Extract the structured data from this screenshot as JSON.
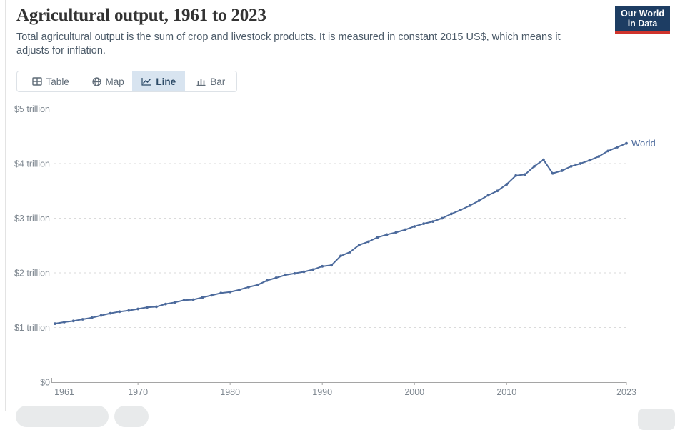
{
  "header": {
    "title": "Agricultural output, 1961 to 2023",
    "subtitle": "Total agricultural output is the sum of crop and livestock products. It is measured in constant 2015 US$, which means it\nadjusts for inflation.",
    "logo": {
      "line1": "Our World",
      "line2": "in Data"
    }
  },
  "tabs": [
    {
      "label": "Table",
      "icon": "table-icon",
      "active": false
    },
    {
      "label": "Map",
      "icon": "globe-icon",
      "active": false
    },
    {
      "label": "Line",
      "icon": "line-chart-icon",
      "active": true
    },
    {
      "label": "Bar",
      "icon": "bar-chart-icon",
      "active": false
    }
  ],
  "colors": {
    "series_blue": "#4C6A9C",
    "gridline": "#dadada",
    "axis": "#a5a5a5",
    "axis_label": "#7e8790",
    "logo_bg": "#1d3d63",
    "logo_red": "#d0342c",
    "active_tab_bg": "#d8e4f0"
  },
  "chart_data": {
    "type": "line",
    "title": "Agricultural output, 1961 to 2023",
    "xlabel": "",
    "ylabel": "",
    "ylim": [
      0,
      5
    ],
    "grid": "dashed-horizontal",
    "legend_position": "end-of-line-label",
    "years": [
      1961,
      1962,
      1963,
      1964,
      1965,
      1966,
      1967,
      1968,
      1969,
      1970,
      1971,
      1972,
      1973,
      1974,
      1975,
      1976,
      1977,
      1978,
      1979,
      1980,
      1981,
      1982,
      1983,
      1984,
      1985,
      1986,
      1987,
      1988,
      1989,
      1990,
      1991,
      1992,
      1993,
      1994,
      1995,
      1996,
      1997,
      1998,
      1999,
      2000,
      2001,
      2002,
      2003,
      2004,
      2005,
      2006,
      2007,
      2008,
      2009,
      2010,
      2011,
      2012,
      2013,
      2014,
      2015,
      2016,
      2017,
      2018,
      2019,
      2020,
      2021,
      2022,
      2023
    ],
    "series": [
      {
        "name": "World",
        "unit": "trillion US$ (constant 2015)",
        "values": [
          1.07,
          1.1,
          1.12,
          1.15,
          1.18,
          1.22,
          1.26,
          1.29,
          1.31,
          1.34,
          1.37,
          1.38,
          1.43,
          1.46,
          1.5,
          1.51,
          1.55,
          1.59,
          1.63,
          1.65,
          1.69,
          1.74,
          1.78,
          1.86,
          1.91,
          1.96,
          1.99,
          2.02,
          2.06,
          2.12,
          2.14,
          2.31,
          2.38,
          2.51,
          2.57,
          2.65,
          2.7,
          2.74,
          2.79,
          2.85,
          2.9,
          2.94,
          3.0,
          3.08,
          3.15,
          3.23,
          3.32,
          3.42,
          3.5,
          3.62,
          3.78,
          3.8,
          3.95,
          4.07,
          3.82,
          3.87,
          3.95,
          4.0,
          4.06,
          4.13,
          4.23,
          4.3,
          4.37
        ]
      }
    ],
    "yticks": [
      {
        "value": 0,
        "label": "$0"
      },
      {
        "value": 1,
        "label": "$1 trillion"
      },
      {
        "value": 2,
        "label": "$2 trillion"
      },
      {
        "value": 3,
        "label": "$3 trillion"
      },
      {
        "value": 4,
        "label": "$4 trillion"
      },
      {
        "value": 5,
        "label": "$5 trillion"
      }
    ],
    "xticks": [
      {
        "value": 1961,
        "label": "1961"
      },
      {
        "value": 1970,
        "label": "1970"
      },
      {
        "value": 1980,
        "label": "1980"
      },
      {
        "value": 1990,
        "label": "1990"
      },
      {
        "value": 2000,
        "label": "2000"
      },
      {
        "value": 2010,
        "label": "2010"
      },
      {
        "value": 2023,
        "label": "2023"
      }
    ]
  }
}
